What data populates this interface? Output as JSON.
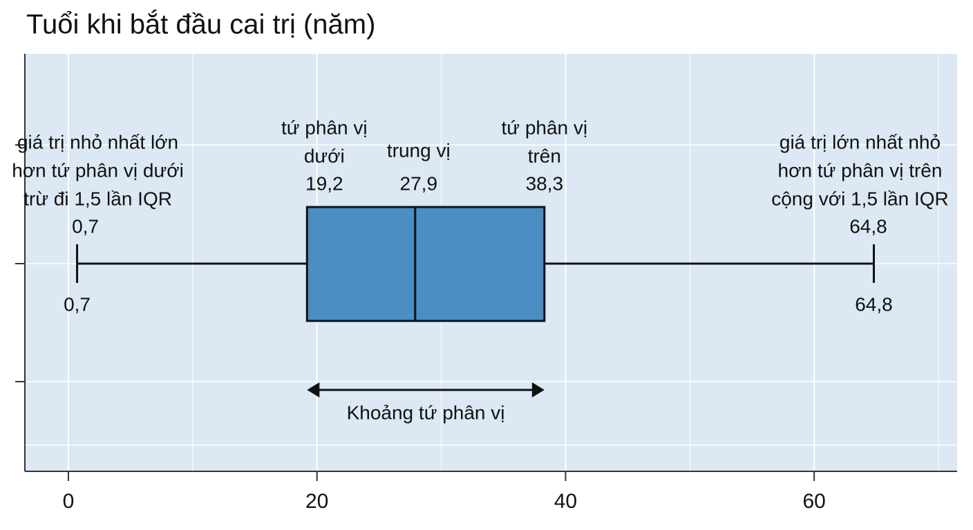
{
  "chart_data": {
    "type": "box",
    "title": "Tuổi khi bắt đầu cai trị (năm)",
    "whislo": 0.7,
    "q1": 19.2,
    "med": 27.9,
    "q3": 38.3,
    "whishi": 64.8,
    "value_labels": {
      "whislo": "0,7",
      "q1": "19,2",
      "med": "27,9",
      "q3": "38,3",
      "whishi": "64,8"
    },
    "annotations": {
      "whislo": [
        "giá trị nhỏ nhất lớn",
        "hơn tứ phân vị dưới",
        "trừ đi 1,5 lần IQR"
      ],
      "q1": [
        "tứ phân vị",
        "dưới"
      ],
      "med": [
        "trung vị"
      ],
      "q3": [
        "tứ phân vị",
        "trên"
      ],
      "whishi": [
        "giá trị lớn nhất nhỏ",
        "hơn tứ phân vị trên",
        "cộng với 1,5 lần IQR"
      ],
      "iqr": "Khoảng tứ phân vị"
    },
    "color": "#4a8ec4",
    "xlim": [
      -3.5,
      71.5
    ],
    "xticks": [
      0,
      20,
      40,
      60
    ],
    "grid": true
  }
}
